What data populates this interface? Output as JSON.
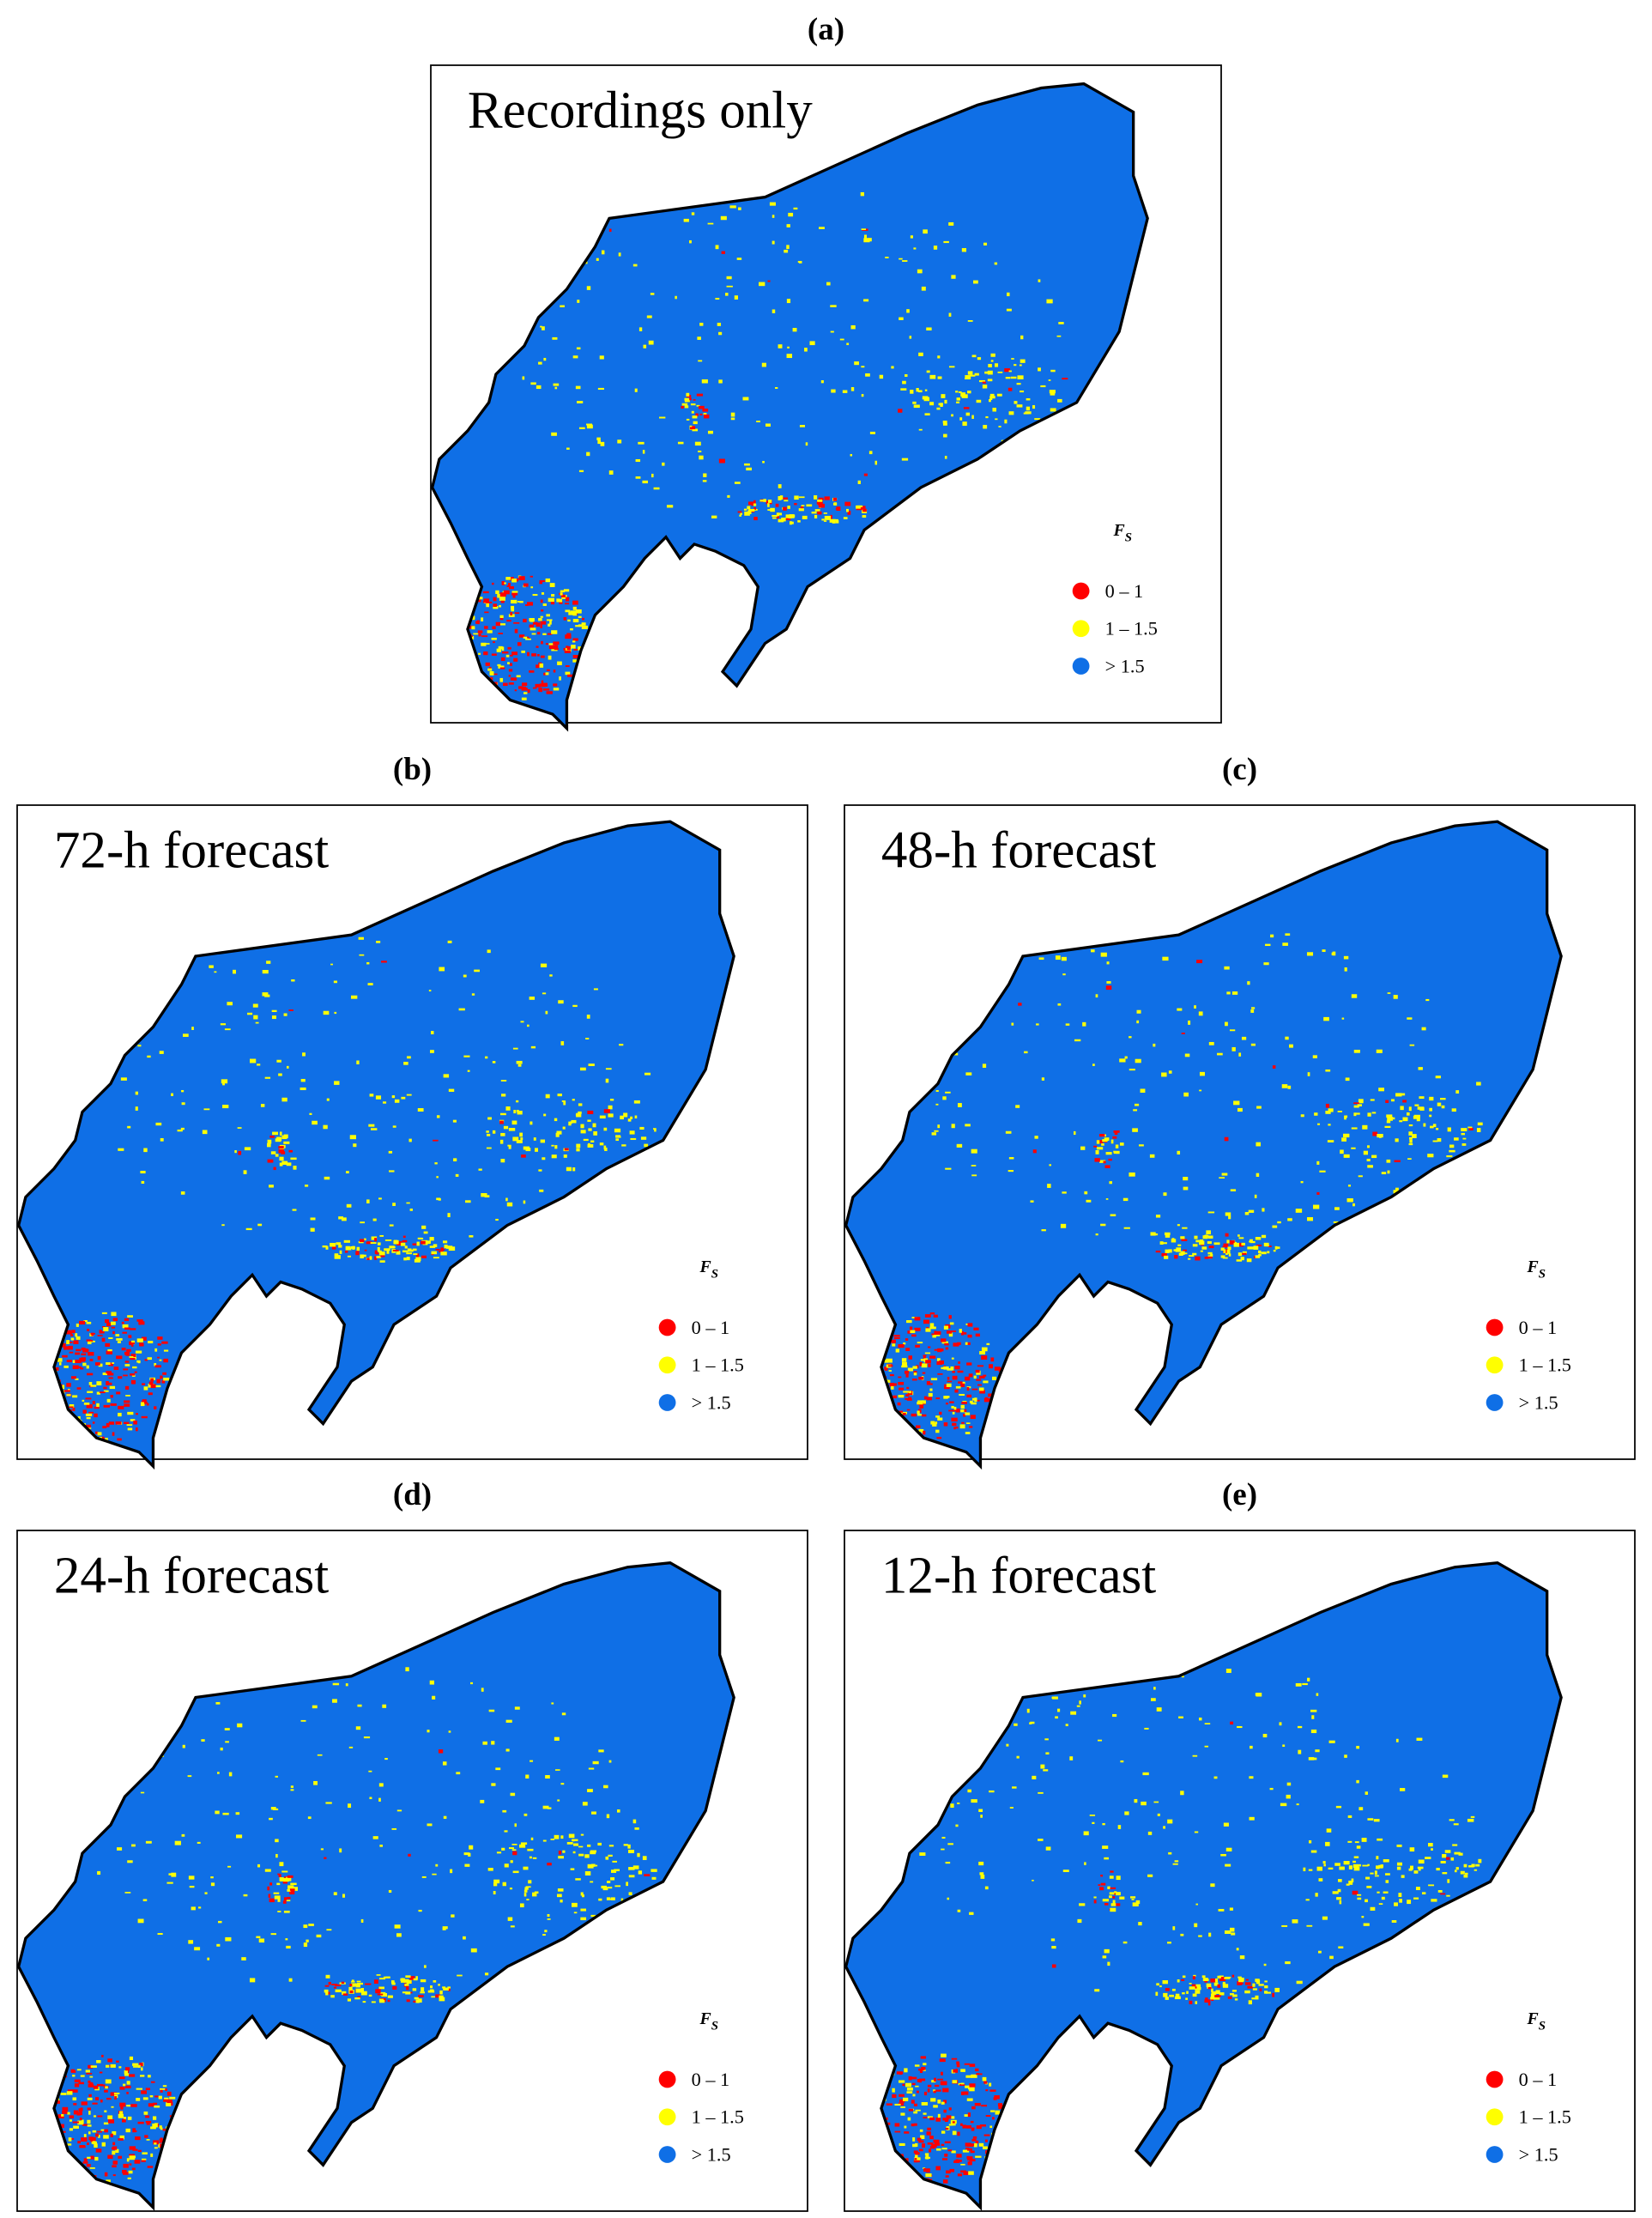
{
  "panels": [
    {
      "label": "(a)",
      "title": "Recordings only"
    },
    {
      "label": "(b)",
      "title": "72-h forecast"
    },
    {
      "label": "(c)",
      "title": "48-h forecast"
    },
    {
      "label": "(d)",
      "title": "24-h forecast"
    },
    {
      "label": "(e)",
      "title": "12-h forecast"
    }
  ],
  "legend": {
    "title": "F",
    "title_sub": "S",
    "items": [
      {
        "label": "0 – 1",
        "color": "#ff0000"
      },
      {
        "label": "1 – 1.5",
        "color": "#ffff00"
      },
      {
        "label": "> 1.5",
        "color": "#0f6fe6"
      }
    ]
  }
}
